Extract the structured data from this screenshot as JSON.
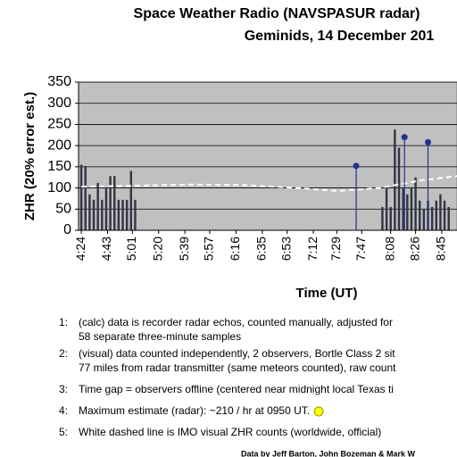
{
  "chart_data": {
    "type": "bar",
    "title": "Space Weather Radio (NAVSPASUR radar)",
    "subtitle": "Geminids, 14 December 201",
    "y_label": "ZHR (20% error est.)",
    "x_label": "Time (UT)",
    "xlim": [
      262,
      536
    ],
    "ylim": [
      0,
      350
    ],
    "yticks": [
      0,
      50,
      100,
      150,
      200,
      250,
      300,
      350
    ],
    "xticks": [
      {
        "value": 264,
        "label": "4:24"
      },
      {
        "value": 283,
        "label": "4:43"
      },
      {
        "value": 301,
        "label": "5:01"
      },
      {
        "value": 320,
        "label": "5:20"
      },
      {
        "value": 339,
        "label": "5:39"
      },
      {
        "value": 357,
        "label": "5:57"
      },
      {
        "value": 376,
        "label": "6:16"
      },
      {
        "value": 395,
        "label": "6:35"
      },
      {
        "value": 413,
        "label": "6:53"
      },
      {
        "value": 432,
        "label": "7:12"
      },
      {
        "value": 449,
        "label": "7:29"
      },
      {
        "value": 467,
        "label": "7:47"
      },
      {
        "value": 488,
        "label": "8:08"
      },
      {
        "value": 506,
        "label": "8:26"
      },
      {
        "value": 525,
        "label": "8:45"
      }
    ],
    "grid": true,
    "bars": {
      "color": "#333344",
      "x": [
        264,
        267,
        270,
        273,
        276,
        279,
        282,
        285,
        288,
        291,
        294,
        297,
        300,
        303,
        482,
        485,
        488,
        491,
        494,
        497,
        500,
        503,
        506,
        509,
        512,
        515,
        518,
        521,
        524,
        527,
        530
      ],
      "values": [
        155,
        152,
        85,
        72,
        112,
        72,
        100,
        128,
        128,
        72,
        72,
        72,
        140,
        72,
        55,
        100,
        55,
        238,
        195,
        100,
        85,
        100,
        125,
        70,
        50,
        70,
        55,
        70,
        85,
        70,
        55
      ]
    },
    "radar": {
      "color": "#22338f",
      "x": [
        463,
        498,
        515
      ],
      "values": [
        152,
        220,
        208
      ]
    },
    "imo_line": {
      "color": "#ffffff",
      "x": [
        264,
        300,
        340,
        380,
        420,
        450,
        480,
        510,
        536
      ],
      "values": [
        103,
        105,
        108,
        107,
        100,
        93,
        100,
        118,
        128
      ]
    }
  },
  "notes": [
    {
      "num": "1:",
      "lines": [
        "(calc) data is recorder radar echos, counted manually, adjusted for",
        "58 separate three-minute samples"
      ]
    },
    {
      "num": "2:",
      "lines": [
        "(visual) data counted independently, 2 observers, Bortle Class 2 sit",
        "77 miles from radar transmitter (same meteors counted), raw count"
      ]
    },
    {
      "num": "3:",
      "lines": [
        "Time gap = observers offline (centered near midnight local Texas ti"
      ]
    },
    {
      "num": "4:",
      "lines": [
        "Maximum estimate (radar):  ~210 / hr at 0950 UT."
      ]
    },
    {
      "num": "5:",
      "lines": [
        "White dashed line is IMO visual ZHR counts (worldwide, official)"
      ]
    }
  ],
  "footer": "Data by Jeff Barton, John Bozeman & Mark W"
}
